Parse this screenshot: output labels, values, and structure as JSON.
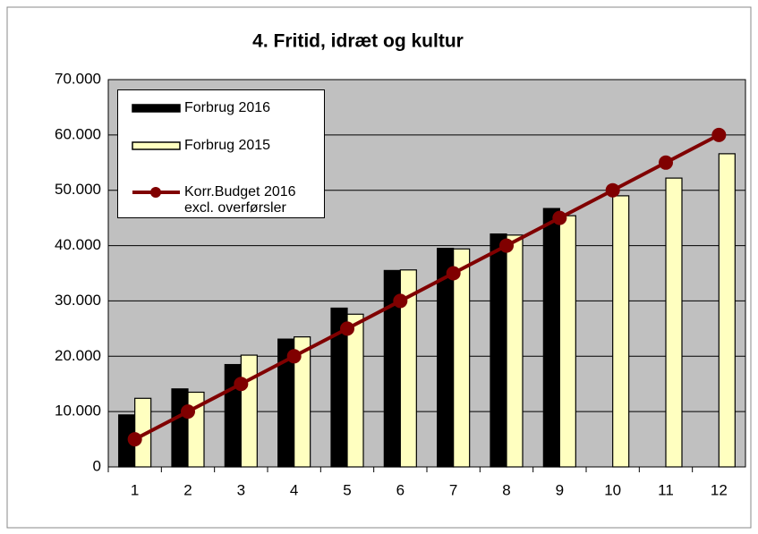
{
  "chart_data": {
    "type": "bar",
    "title": "4. Fritid, idræt og kultur",
    "categories": [
      "1",
      "2",
      "3",
      "4",
      "5",
      "6",
      "7",
      "8",
      "9",
      "10",
      "11",
      "12"
    ],
    "series": [
      {
        "name": "Forbrug 2016",
        "type": "bar",
        "color": "#000000",
        "values": [
          9400,
          14100,
          18500,
          23100,
          28700,
          35500,
          39500,
          42100,
          46700,
          null,
          null,
          null
        ]
      },
      {
        "name": "Forbrug 2015",
        "type": "bar",
        "color": "#ffffc0",
        "values": [
          12400,
          13500,
          20200,
          23500,
          27600,
          35600,
          39400,
          41900,
          45400,
          49000,
          52200,
          56600
        ]
      },
      {
        "name": "Korr.Budget 2016\nexcl. overførsler",
        "type": "line",
        "color": "#800000",
        "values": [
          5000,
          10000,
          15000,
          20000,
          25000,
          30000,
          35000,
          40000,
          45000,
          50000,
          55000,
          60000
        ]
      }
    ],
    "ylim": [
      0,
      70000
    ],
    "yticks": [
      0,
      {
        "value": 10000,
        "label": "10.000"
      },
      {
        "value": 20000,
        "label": "20.000"
      },
      {
        "value": 30000,
        "label": "30.000"
      },
      {
        "value": 40000,
        "label": "40.000"
      },
      {
        "value": 50000,
        "label": "50.000"
      },
      {
        "value": 60000,
        "label": "60.000"
      },
      {
        "value": 70000,
        "label": "70.000"
      }
    ],
    "grid": true,
    "plot_background": "#c0c0c0",
    "legend": "upper left"
  }
}
